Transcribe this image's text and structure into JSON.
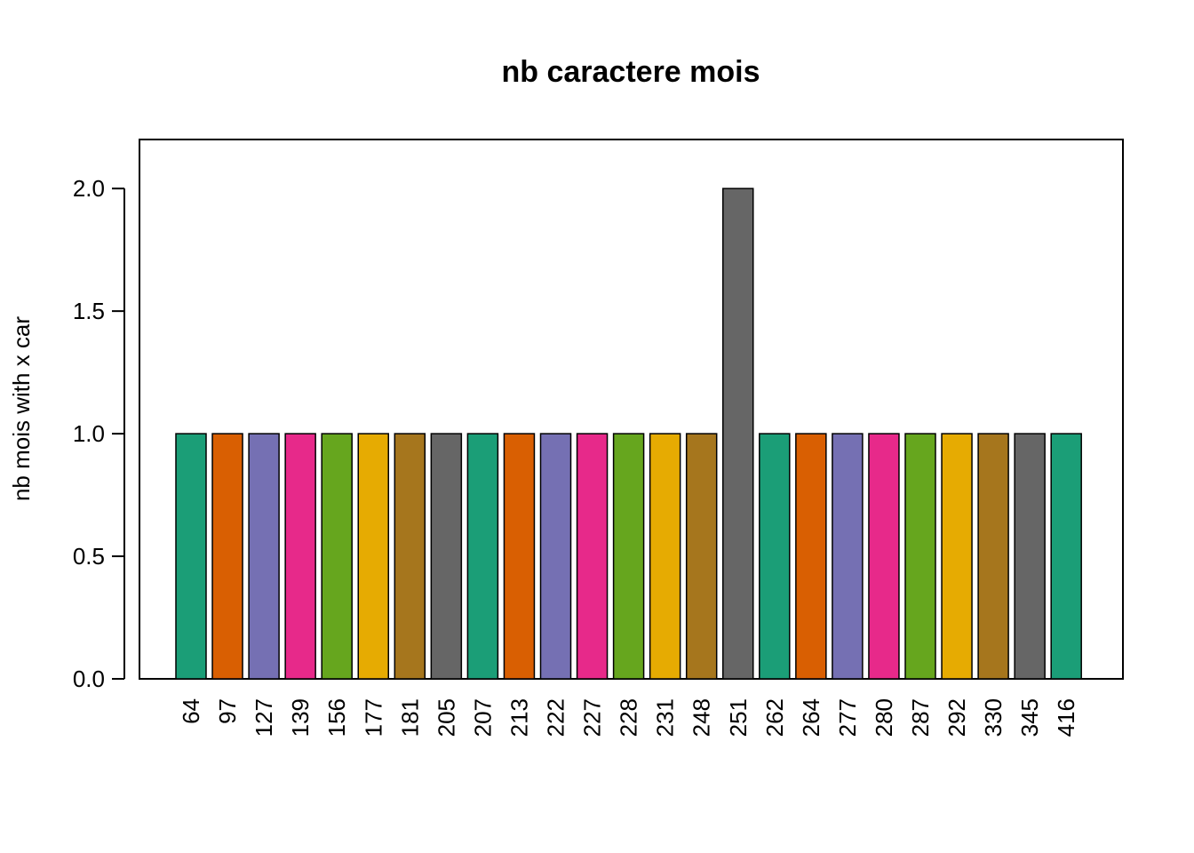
{
  "chart_data": {
    "type": "bar",
    "title": "nb caractere mois",
    "xlabel": "",
    "ylabel": "nb mois with x car",
    "categories": [
      "64",
      "97",
      "127",
      "139",
      "156",
      "177",
      "181",
      "205",
      "207",
      "213",
      "222",
      "227",
      "228",
      "231",
      "248",
      "251",
      "262",
      "264",
      "277",
      "280",
      "287",
      "292",
      "330",
      "345",
      "416"
    ],
    "values": [
      1,
      1,
      1,
      1,
      1,
      1,
      1,
      1,
      1,
      1,
      1,
      1,
      1,
      1,
      1,
      2,
      1,
      1,
      1,
      1,
      1,
      1,
      1,
      1,
      1
    ],
    "ylim": [
      0,
      2.2
    ],
    "yticks": [
      0.0,
      0.5,
      1.0,
      1.5,
      2.0
    ],
    "ytick_labels": [
      "0.0",
      "0.5",
      "1.0",
      "1.5",
      "2.0"
    ],
    "colors": [
      "#1B9E77",
      "#D95F02",
      "#7570B3",
      "#E7298A",
      "#66A61E",
      "#E6AB02",
      "#A6761D",
      "#666666"
    ],
    "grid": false,
    "legend": "none"
  }
}
